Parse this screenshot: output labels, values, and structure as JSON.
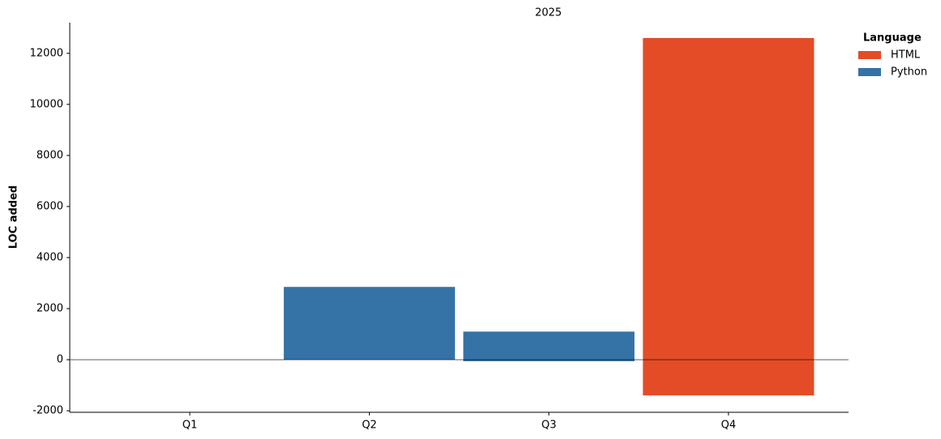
{
  "chart_data": {
    "type": "bar",
    "title": "2025",
    "y_label": "LOC added",
    "legend_title": "Language",
    "categories": [
      "Q1",
      "Q2",
      "Q3",
      "Q4"
    ],
    "series": [
      {
        "name": "HTML",
        "color": "#e34c26",
        "values": [
          null,
          null,
          null,
          12600
        ],
        "lows": [
          null,
          null,
          null,
          -1400
        ]
      },
      {
        "name": "Python",
        "color": "#3572a5",
        "values": [
          null,
          2850,
          1100,
          null
        ],
        "lows": [
          null,
          0,
          -60,
          null
        ]
      }
    ],
    "ylim": [
      -2060,
      13200
    ],
    "yticks": [
      -2000,
      0,
      2000,
      4000,
      6000,
      8000,
      10000,
      12000
    ],
    "grid": false,
    "legend": "upper right"
  }
}
